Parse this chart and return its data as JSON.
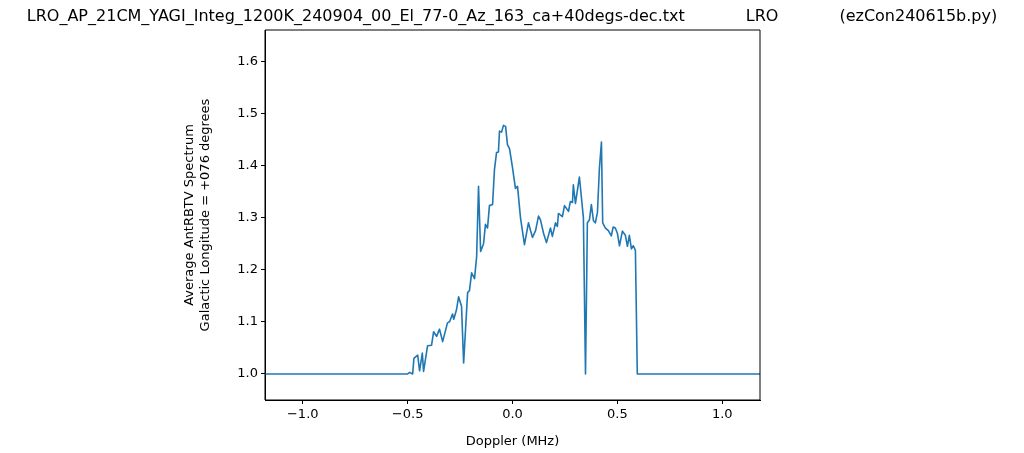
{
  "chart_data": {
    "type": "line",
    "title": "LRO_AP_21CM_YAGI_Integ_1200K_240904_00_El_77-0_Az_163_ca+40degs-dec.txt            LRO            (ezCon240615b.py)",
    "xlabel": "Doppler (MHz)",
    "ylabel": "Average AntRBTV Spectrum\nGalactic Longitude = +076 degrees",
    "xlim": [
      -1.18,
      1.18
    ],
    "ylim": [
      0.95,
      1.66
    ],
    "xticks": [
      {
        "value": -1,
        "label": "−1.0"
      },
      {
        "value": -0.5,
        "label": "−0.5"
      },
      {
        "value": 0,
        "label": "0.0"
      },
      {
        "value": 0.5,
        "label": "0.5"
      },
      {
        "value": 1,
        "label": "1.0"
      }
    ],
    "yticks": [
      {
        "value": 1,
        "label": "1.0"
      },
      {
        "value": 1.1,
        "label": "1.1"
      },
      {
        "value": 1.2,
        "label": "1.2"
      },
      {
        "value": 1.3,
        "label": "1.3"
      },
      {
        "value": 1.4,
        "label": "1.4"
      },
      {
        "value": 1.5,
        "label": "1.5"
      },
      {
        "value": 1.6,
        "label": "1.6"
      }
    ],
    "grid": false,
    "legend": false,
    "marker": "none",
    "line_style": "solid",
    "series": [
      {
        "color": "#1f77b4",
        "x": [
          -1.18,
          -0.5,
          -0.49,
          -0.476,
          -0.47,
          -0.452,
          -0.443,
          -0.43,
          -0.424,
          -0.405,
          -0.386,
          -0.376,
          -0.362,
          -0.348,
          -0.333,
          -0.31,
          -0.3,
          -0.286,
          -0.28,
          -0.267,
          -0.257,
          -0.243,
          -0.233,
          -0.214,
          -0.205,
          -0.195,
          -0.181,
          -0.171,
          -0.162,
          -0.152,
          -0.138,
          -0.129,
          -0.119,
          -0.11,
          -0.095,
          -0.086,
          -0.076,
          -0.067,
          -0.062,
          -0.052,
          -0.043,
          -0.033,
          -0.024,
          -0.014,
          0.0,
          0.014,
          0.024,
          0.038,
          0.057,
          0.076,
          0.095,
          0.11,
          0.124,
          0.133,
          0.148,
          0.162,
          0.181,
          0.19,
          0.205,
          0.214,
          0.219,
          0.238,
          0.248,
          0.267,
          0.276,
          0.286,
          0.29,
          0.3,
          0.319,
          0.338,
          0.348,
          0.357,
          0.367,
          0.376,
          0.386,
          0.395,
          0.405,
          0.414,
          0.424,
          0.43,
          0.443,
          0.457,
          0.471,
          0.48,
          0.49,
          0.5,
          0.51,
          0.524,
          0.538,
          0.548,
          0.557,
          0.567,
          0.576,
          0.586,
          0.595,
          1.18
        ],
        "values": [
          1.0,
          1.0,
          1.003,
          1.0,
          1.03,
          1.036,
          1.006,
          1.04,
          1.005,
          1.054,
          1.055,
          1.081,
          1.072,
          1.086,
          1.062,
          1.098,
          1.1,
          1.115,
          1.105,
          1.123,
          1.148,
          1.13,
          1.021,
          1.156,
          1.16,
          1.194,
          1.183,
          1.225,
          1.36,
          1.235,
          1.25,
          1.287,
          1.28,
          1.323,
          1.325,
          1.392,
          1.425,
          1.426,
          1.466,
          1.464,
          1.477,
          1.475,
          1.44,
          1.432,
          1.396,
          1.356,
          1.36,
          1.3,
          1.248,
          1.29,
          1.262,
          1.275,
          1.303,
          1.296,
          1.27,
          1.252,
          1.28,
          1.264,
          1.29,
          1.283,
          1.308,
          1.302,
          1.323,
          1.312,
          1.331,
          1.329,
          1.363,
          1.327,
          1.378,
          1.3,
          1.0,
          1.29,
          1.296,
          1.325,
          1.294,
          1.29,
          1.31,
          1.392,
          1.445,
          1.29,
          1.28,
          1.275,
          1.265,
          1.282,
          1.28,
          1.27,
          1.246,
          1.274,
          1.266,
          1.245,
          1.266,
          1.24,
          1.246,
          1.237,
          1.0,
          1.0
        ]
      }
    ]
  }
}
